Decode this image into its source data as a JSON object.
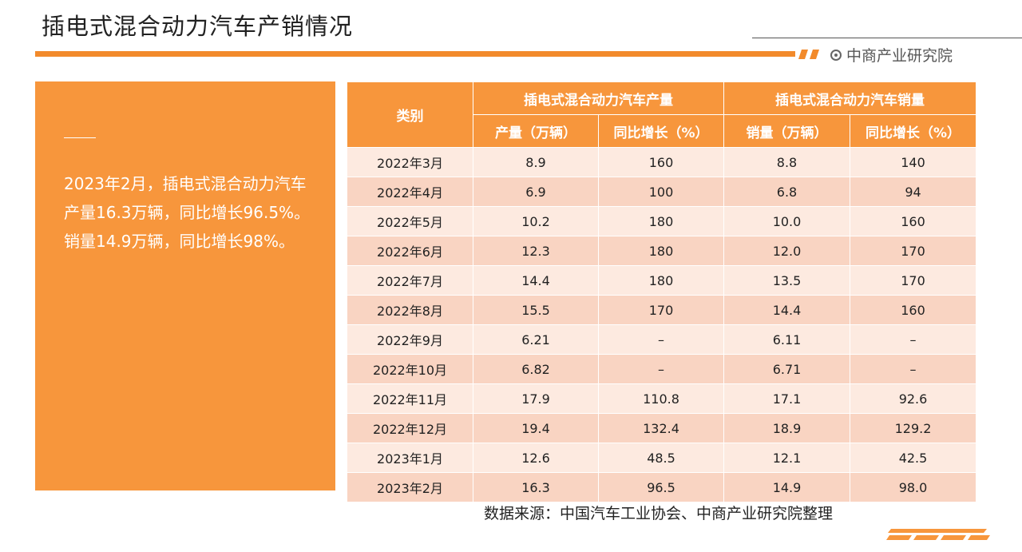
{
  "title": "插电式混合动力汽车产销情况",
  "brand": "中商产业研究院",
  "summary": "2023年2月，插电式混合动力汽车产量16.3万辆，同比增长96.5%。销量14.9万辆，同比增长98%。",
  "colors": {
    "accent": "#f7963c",
    "bar": "#f28a2b",
    "row_light": "#fdeae0",
    "row_dark": "#f9d4c2"
  },
  "table": {
    "col_category": "类别",
    "group_production": "插电式混合动力汽车产量",
    "group_sales": "插电式混合动力汽车销量",
    "sub_production": "产量（万辆）",
    "sub_prod_growth": "同比增长（%）",
    "sub_sales": "销量（万辆）",
    "sub_sales_growth": "同比增长（%）",
    "rows": [
      [
        "2022年3月",
        "8.9",
        "160",
        "8.8",
        "140"
      ],
      [
        "2022年4月",
        "6.9",
        "100",
        "6.8",
        "94"
      ],
      [
        "2022年5月",
        "10.2",
        "180",
        "10.0",
        "160"
      ],
      [
        "2022年6月",
        "12.3",
        "180",
        "12.0",
        "170"
      ],
      [
        "2022年7月",
        "14.4",
        "180",
        "13.5",
        "170"
      ],
      [
        "2022年8月",
        "15.5",
        "170",
        "14.4",
        "160"
      ],
      [
        "2022年9月",
        "6.21",
        "–",
        "6.11",
        "–"
      ],
      [
        "2022年10月",
        "6.82",
        "–",
        "6.71",
        "–"
      ],
      [
        "2022年11月",
        "17.9",
        "110.8",
        "17.1",
        "92.6"
      ],
      [
        "2022年12月",
        "19.4",
        "132.4",
        "18.9",
        "129.2"
      ],
      [
        "2023年1月",
        "12.6",
        "48.5",
        "12.1",
        "42.5"
      ],
      [
        "2023年2月",
        "16.3",
        "96.5",
        "14.9",
        "98.0"
      ]
    ]
  },
  "source": "数据来源：中国汽车工业协会、中商产业研究院整理"
}
